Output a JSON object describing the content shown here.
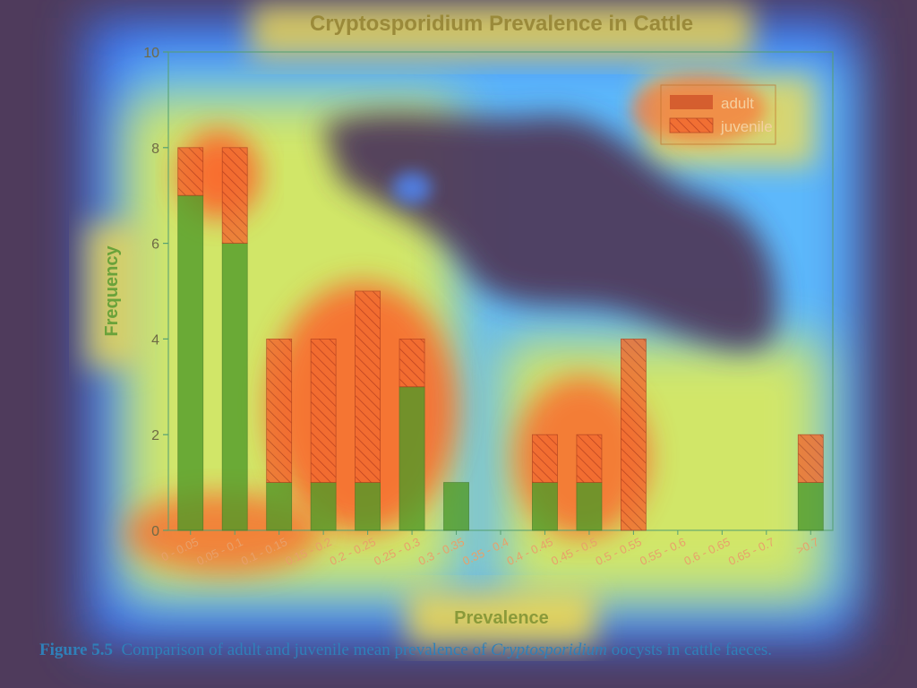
{
  "colors": {
    "background": "#4f3b5c",
    "heat_low": "#5566ff",
    "heat_mid": "#ffee44",
    "heat_high": "#ff4422",
    "title_text": "#9a8a3a",
    "adult_bar": "#4e9a28",
    "juvenile_bar": "#f05a28"
  },
  "chart_data": {
    "type": "bar",
    "stacked": true,
    "title": "Cryptosporidium Prevalence in Cattle",
    "xlabel": "Prevalence",
    "ylabel": "Frequency",
    "ylim": [
      0,
      10
    ],
    "yticks": [
      0,
      2,
      4,
      6,
      8,
      10
    ],
    "grid": false,
    "legend_position": "top-right",
    "categories": [
      "0 - 0.05",
      "0.05 - 0.1",
      "0.1 - 0.15",
      "0.15 - 0.2",
      "0.2 - 0.25",
      "0.25 - 0.3",
      "0.3 - 0.35",
      "0.35 - 0.4",
      "0.4 - 0.45",
      "0.45 - 0.5",
      "0.5 - 0.55",
      "0.55 - 0.6",
      "0.6 - 0.65",
      "0.65 - 0.7",
      ">0.7"
    ],
    "series": [
      {
        "name": "adult",
        "values": [
          7,
          6,
          1,
          1,
          1,
          3,
          1,
          0,
          1,
          1,
          0,
          0,
          0,
          0,
          1
        ]
      },
      {
        "name": "juvenile",
        "values": [
          1,
          2,
          3,
          3,
          4,
          1,
          0,
          0,
          1,
          1,
          4,
          0,
          0,
          0,
          1
        ]
      }
    ]
  },
  "caption": {
    "label": "Figure 5.5",
    "text_before": "Comparison of adult and juvenile mean prevalence of ",
    "italic": "Cryptosporidium",
    "text_after": " oocysts in cattle faeces."
  }
}
